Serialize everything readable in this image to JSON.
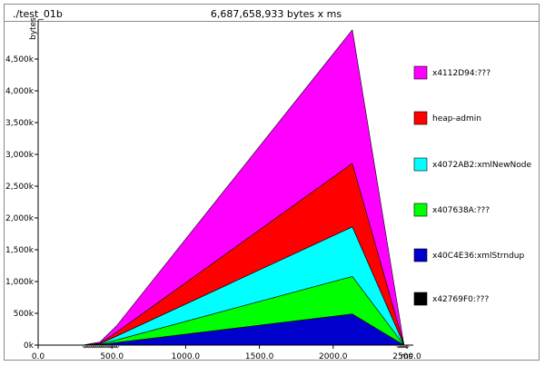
{
  "header": {
    "command": "./test_01b",
    "total": "6,687,658,933 bytes x ms"
  },
  "chart_data": {
    "type": "area",
    "stacked": true,
    "ylabel": "bytes",
    "xlabel": "ms",
    "xlim": [
      0,
      2500
    ],
    "ylim": [
      0,
      5000000
    ],
    "x_ticks": [
      "0.0",
      "500.0",
      "1000.0",
      "1500.0",
      "2000.0",
      "2500.0",
      "ms"
    ],
    "y_ticks": [
      "0k",
      "500k",
      "1,000k",
      "1,500k",
      "2,000k",
      "2,500k",
      "3,000k",
      "3,500k",
      "4,000k",
      "4,500k"
    ],
    "y_tick_values": [
      0,
      500000,
      1000000,
      1500000,
      2000000,
      2500000,
      3000000,
      3500000,
      4000000,
      4500000
    ],
    "x": [
      0,
      300,
      420,
      530,
      2130,
      2480
    ],
    "series": [
      {
        "name": "x42769F0:???",
        "color": "#000000",
        "values": [
          0,
          0,
          0,
          0,
          0,
          0
        ]
      },
      {
        "name": "x40C4E36:xmlStrndup",
        "color": "#0000cc",
        "values": [
          0,
          0,
          5000,
          40000,
          490000,
          0
        ]
      },
      {
        "name": "x407638A:???",
        "color": "#00ff00",
        "values": [
          0,
          0,
          5000,
          40000,
          590000,
          0
        ]
      },
      {
        "name": "x4072AB2:xmlNewNode",
        "color": "#00ffff",
        "values": [
          0,
          0,
          10000,
          60000,
          780000,
          0
        ]
      },
      {
        "name": "heap-admin",
        "color": "#ff0000",
        "values": [
          0,
          0,
          10000,
          60000,
          1000000,
          0
        ]
      },
      {
        "name": "x4112D94:???",
        "color": "#ff00ff",
        "values": [
          0,
          0,
          20000,
          100000,
          2100000,
          0
        ]
      }
    ],
    "legend": [
      "x4112D94:???",
      "heap-admin",
      "x4072AB2:xmlNewNode",
      "x407638A:???",
      "x40C4E36:xmlStrndup",
      "x42769F0:???"
    ],
    "legend_position": "right"
  }
}
